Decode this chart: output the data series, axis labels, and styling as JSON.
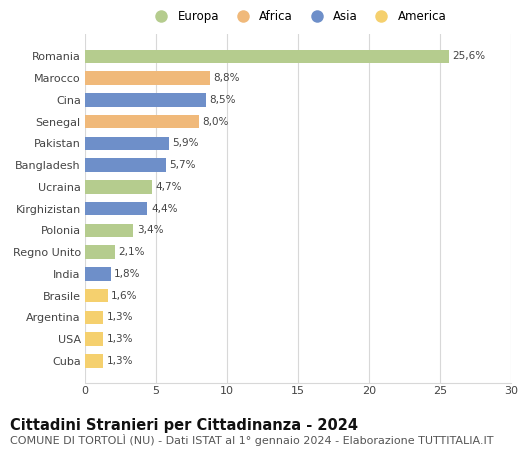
{
  "categories": [
    "Romania",
    "Marocco",
    "Cina",
    "Senegal",
    "Pakistan",
    "Bangladesh",
    "Ucraina",
    "Kirghizistan",
    "Polonia",
    "Regno Unito",
    "India",
    "Brasile",
    "Argentina",
    "USA",
    "Cuba"
  ],
  "values": [
    25.6,
    8.8,
    8.5,
    8.0,
    5.9,
    5.7,
    4.7,
    4.4,
    3.4,
    2.1,
    1.8,
    1.6,
    1.3,
    1.3,
    1.3
  ],
  "labels": [
    "25,6%",
    "8,8%",
    "8,5%",
    "8,0%",
    "5,9%",
    "5,7%",
    "4,7%",
    "4,4%",
    "3,4%",
    "2,1%",
    "1,8%",
    "1,6%",
    "1,3%",
    "1,3%",
    "1,3%"
  ],
  "continent": [
    "Europa",
    "Africa",
    "Asia",
    "Africa",
    "Asia",
    "Asia",
    "Europa",
    "Asia",
    "Europa",
    "Europa",
    "Asia",
    "America",
    "America",
    "America",
    "America"
  ],
  "colors": {
    "Europa": "#b5cc8e",
    "Africa": "#f0b97a",
    "Asia": "#6e8fc9",
    "America": "#f5d06e"
  },
  "legend_order": [
    "Europa",
    "Africa",
    "Asia",
    "America"
  ],
  "title": "Cittadini Stranieri per Cittadinanza - 2024",
  "subtitle": "COMUNE DI TORTOLÌ (NU) - Dati ISTAT al 1° gennaio 2024 - Elaborazione TUTTITALIA.IT",
  "xlim": [
    0,
    30
  ],
  "xticks": [
    0,
    5,
    10,
    15,
    20,
    25,
    30
  ],
  "bg_color": "#ffffff",
  "grid_color": "#d8d8d8",
  "bar_height": 0.62,
  "title_fontsize": 10.5,
  "subtitle_fontsize": 8.0,
  "label_fontsize": 7.5,
  "tick_fontsize": 8.0,
  "legend_fontsize": 8.5
}
